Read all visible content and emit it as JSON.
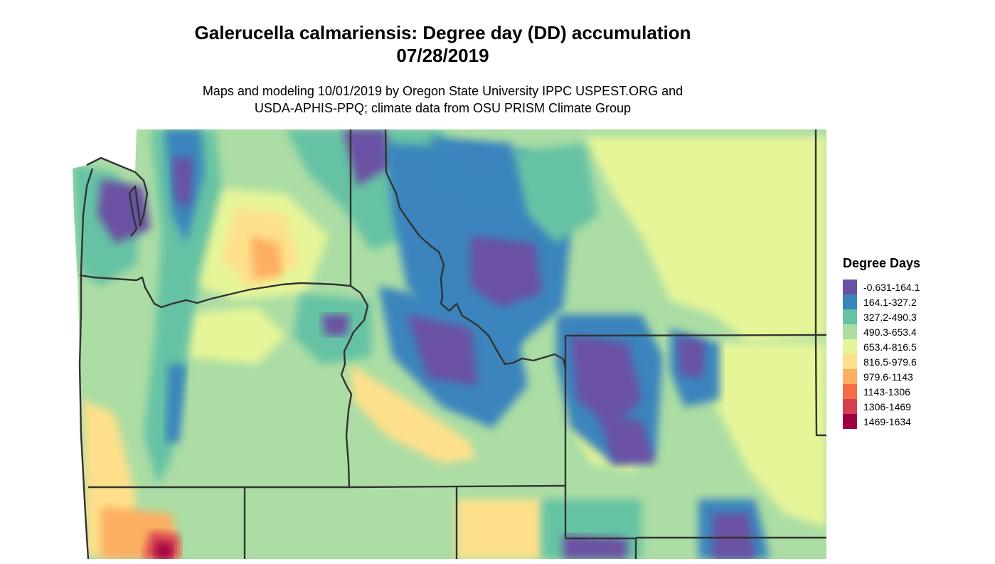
{
  "header": {
    "title_line1": "Galerucella calmariensis: Degree day (DD) accumulation",
    "title_line2": "07/28/2019",
    "credit_line1": "Maps and modeling 10/01/2019 by Oregon State University IPPC USPEST.ORG and",
    "credit_line2": "USDA-APHIS-PPQ; climate data from OSU PRISM Climate Group"
  },
  "legend": {
    "title": "Degree Days",
    "items": [
      {
        "label": "-0.631-164.1",
        "color": "#6a51a3"
      },
      {
        "label": "164.1-327.2",
        "color": "#3a84bd"
      },
      {
        "label": "327.2-490.3",
        "color": "#66c2a4"
      },
      {
        "label": "490.3-653.4",
        "color": "#abdda4"
      },
      {
        "label": "653.4-816.5",
        "color": "#e6f598"
      },
      {
        "label": "816.5-979.6",
        "color": "#fee08b"
      },
      {
        "label": "979.6-1143",
        "color": "#fdae61"
      },
      {
        "label": "1143-1306",
        "color": "#f46d43"
      },
      {
        "label": "1306-1469",
        "color": "#d53e4f"
      },
      {
        "label": "1469-1634",
        "color": "#9e0142"
      }
    ]
  },
  "map": {
    "boundary_color": "#333333"
  }
}
